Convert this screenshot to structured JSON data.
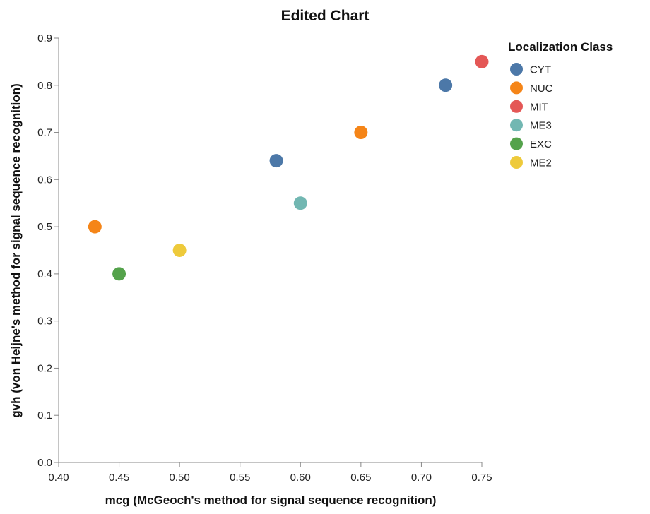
{
  "chart_data": {
    "type": "scatter",
    "title": "Edited Chart",
    "xlabel": "mcg (McGeoch's method for signal sequence recognition)",
    "ylabel": "gvh (von Heijne's method for signal sequence recognition)",
    "xlim": [
      0.4,
      0.75
    ],
    "ylim": [
      0.0,
      0.9
    ],
    "x_ticks": [
      "0.40",
      "0.45",
      "0.50",
      "0.55",
      "0.60",
      "0.65",
      "0.70",
      "0.75"
    ],
    "y_ticks": [
      "0.0",
      "0.1",
      "0.2",
      "0.3",
      "0.4",
      "0.5",
      "0.6",
      "0.7",
      "0.8",
      "0.9"
    ],
    "grid": false,
    "legend": {
      "title": "Localization Class",
      "placement": "right",
      "entries": [
        {
          "name": "CYT",
          "color": "#4c78a8"
        },
        {
          "name": "NUC",
          "color": "#f58518"
        },
        {
          "name": "MIT",
          "color": "#e45756"
        },
        {
          "name": "ME3",
          "color": "#72b7b2"
        },
        {
          "name": "EXC",
          "color": "#54a24b"
        },
        {
          "name": "ME2",
          "color": "#eeca3b"
        }
      ]
    },
    "points": [
      {
        "x": 0.58,
        "y": 0.64,
        "class": "CYT"
      },
      {
        "x": 0.43,
        "y": 0.5,
        "class": "NUC"
      },
      {
        "x": 0.75,
        "y": 0.85,
        "class": "MIT"
      },
      {
        "x": 0.6,
        "y": 0.55,
        "class": "ME3"
      },
      {
        "x": 0.45,
        "y": 0.4,
        "class": "EXC"
      },
      {
        "x": 0.72,
        "y": 0.8,
        "class": "CYT"
      },
      {
        "x": 0.5,
        "y": 0.45,
        "class": "ME2"
      },
      {
        "x": 0.65,
        "y": 0.7,
        "class": "NUC"
      }
    ]
  }
}
